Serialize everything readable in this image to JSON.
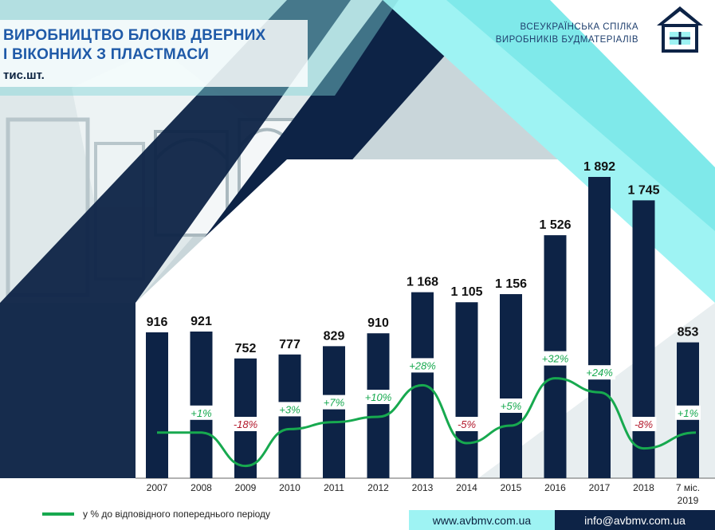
{
  "header": {
    "title_line1": "ВИРОБНИЦТВО БЛОКІВ ДВЕРНИХ",
    "title_line2": "І ВІКОННИХ З ПЛАСТМАСИ",
    "unit": "тис.шт."
  },
  "org": {
    "line1": "ВСЕУКРАЇНСЬКА СПІЛКА",
    "line2": "ВИРОБНИКІВ БУДМАТЕРІАЛІВ",
    "logo_icon": "house-logo-icon"
  },
  "colors": {
    "bar": "#0d2346",
    "line": "#17a94f",
    "positive": "#17a94f",
    "negative": "#b2182b",
    "accent": "#9ef3f3"
  },
  "chart_data": {
    "type": "bar",
    "categories": [
      "2007",
      "2008",
      "2009",
      "2010",
      "2011",
      "2012",
      "2013",
      "2014",
      "2015",
      "2016",
      "2017",
      "2018",
      "7 міс. 2019"
    ],
    "values": [
      916,
      921,
      752,
      777,
      829,
      910,
      1168,
      1105,
      1156,
      1526,
      1892,
      1745,
      853
    ],
    "value_labels": [
      "916",
      "921",
      "752",
      "777",
      "829",
      "910",
      "1 168",
      "1 105",
      "1 156",
      "1 526",
      "1 892",
      "1 745",
      "853"
    ],
    "growth_series": {
      "name": "у % до відповідного попереднього періоду",
      "type": "line",
      "values": [
        null,
        1,
        -18,
        3,
        7,
        10,
        28,
        -5,
        5,
        32,
        24,
        -8,
        1
      ],
      "labels": [
        "",
        "+1%",
        "-18%",
        "+3%",
        "+7%",
        "+10%",
        "+28%",
        "-5%",
        "+5%",
        "+32%",
        "+24%",
        "-8%",
        "+1%"
      ]
    },
    "ylim": [
      0,
      2000
    ],
    "grid": false,
    "legend": "bottom-left"
  },
  "footer": {
    "website": "www.avbmv.com.ua",
    "email": "info@avbmv.com.ua"
  }
}
